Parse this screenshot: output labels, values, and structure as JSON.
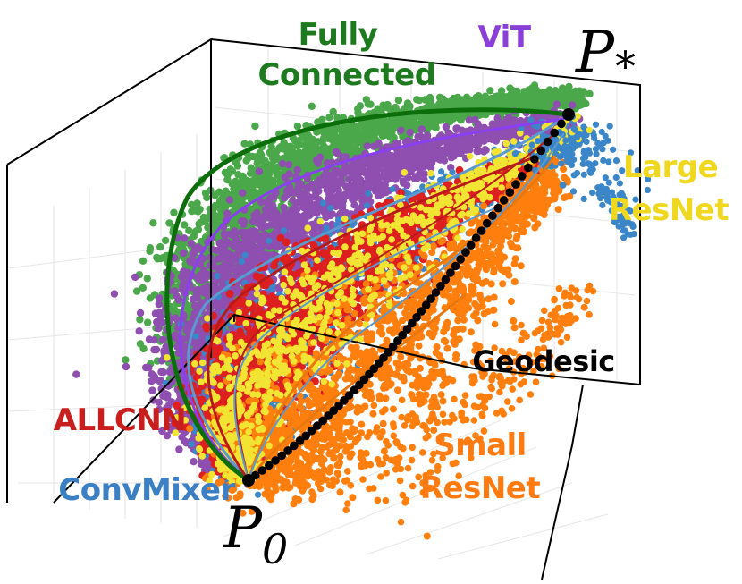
{
  "labels": {
    "fully_connected_line1": "Fully",
    "fully_connected_line2": "Connected",
    "vit": "ViT",
    "large_resnet_line1": "Large",
    "large_resnet_line2": "ResNet",
    "allcnn": "ALLCNN",
    "convmixer": "ConvMixer",
    "geodesic": "Geodesic",
    "small_resnet_line1": "Small",
    "small_resnet_line2": "ResNet",
    "p_star_base": "P",
    "p_star_sub": "*",
    "p0_base": "P",
    "p0_sub": "0"
  },
  "colors": {
    "fully_connected_points": "#4aa84a",
    "fully_connected_label": "#1e7a1e",
    "fully_connected_curve": "#0b6e0b",
    "vit_points": "#8e4fb0",
    "vit_label": "#8a3fd8",
    "vit_curve": "#8a3ff0",
    "allcnn_points": "#dd1f1f",
    "allcnn_label": "#c81e1e",
    "allcnn_curve": "#b81a1a",
    "convmixer_points": "#3a86c8",
    "convmixer_label": "#3b7fc4",
    "convmixer_curve": "#5a9ad0",
    "large_resnet_points": "#f2e432",
    "large_resnet_label": "#f0d820",
    "small_resnet_points": "#ff7f0e",
    "small_resnet_label": "#ff7a10",
    "small_resnet_curve": "#e8780e",
    "geodesic": "#000000",
    "axes": "#000000",
    "grid": "#e6e6e6"
  }
}
